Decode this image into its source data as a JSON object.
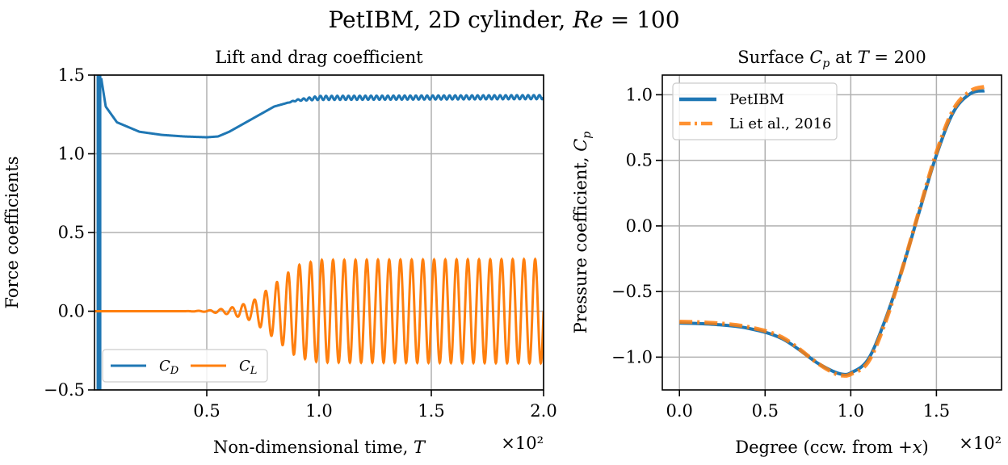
{
  "figure": {
    "suptitle": "PetIBM, 2D cylinder, Re = 100",
    "background": "#ffffff"
  },
  "chart_data": [
    {
      "type": "line",
      "title": "Lift and drag coefficient",
      "xlabel": "Non-dimensional time, T",
      "ylabel": "Force coefficients",
      "x_multiplier": "×10²",
      "xlim": [
        0,
        2.0
      ],
      "ylim": [
        -0.5,
        1.5
      ],
      "xticks": [
        "0.5",
        "1.0",
        "1.5",
        "2.0"
      ],
      "yticks": [
        "−0.5",
        "0.0",
        "0.5",
        "1.0",
        "1.5"
      ],
      "grid": true,
      "legend": {
        "position": "bottom-left",
        "columns": 2
      },
      "colors": {
        "cd": "#1f77b4",
        "cl": "#ff7f0e"
      },
      "series": [
        {
          "name": "C_D",
          "points": [
            [
              0.03,
              1.48
            ],
            [
              0.05,
              1.3
            ],
            [
              0.1,
              1.2
            ],
            [
              0.2,
              1.14
            ],
            [
              0.3,
              1.12
            ],
            [
              0.4,
              1.11
            ],
            [
              0.5,
              1.105
            ],
            [
              0.55,
              1.11
            ],
            [
              0.6,
              1.14
            ],
            [
              0.7,
              1.22
            ],
            [
              0.8,
              1.3
            ],
            [
              0.9,
              1.34
            ],
            [
              1.0,
              1.355
            ],
            [
              2.0,
              1.36
            ]
          ],
          "startup_spike": {
            "x": 0.02,
            "range": [
              -0.5,
              1.5
            ]
          },
          "steady_oscillation": {
            "from_x": 0.85,
            "amplitude": 0.013,
            "periods_per_unit": 40
          }
        },
        {
          "name": "C_L",
          "baseline": 0.0,
          "envelope": [
            [
              0.0,
              0.0
            ],
            [
              0.4,
              0.0
            ],
            [
              0.5,
              0.004
            ],
            [
              0.6,
              0.02
            ],
            [
              0.7,
              0.06
            ],
            [
              0.8,
              0.17
            ],
            [
              0.9,
              0.29
            ],
            [
              1.0,
              0.325
            ],
            [
              2.0,
              0.33
            ]
          ],
          "periods_per_unit": 20
        }
      ]
    },
    {
      "type": "line",
      "title": "Surface C_p at T = 200",
      "xlabel": "Degree (ccw. from +x)",
      "ylabel": "Pressure coefficient, C_p",
      "x_multiplier": "×10²",
      "xlim": [
        -0.1,
        1.88
      ],
      "ylim": [
        -1.25,
        1.15
      ],
      "xticks": [
        "0.0",
        "0.5",
        "1.0",
        "1.5"
      ],
      "yticks": [
        "−1.0",
        "−0.5",
        "0.0",
        "0.5",
        "1.0"
      ],
      "grid": true,
      "legend": {
        "position": "top-left"
      },
      "series": [
        {
          "name": "PetIBM",
          "color": "#1f77b4",
          "style": "solid",
          "points": [
            [
              0.0,
              -0.74
            ],
            [
              0.2,
              -0.75
            ],
            [
              0.4,
              -0.78
            ],
            [
              0.6,
              -0.86
            ],
            [
              0.8,
              -1.04
            ],
            [
              0.9,
              -1.11
            ],
            [
              0.95,
              -1.13
            ],
            [
              1.0,
              -1.12
            ],
            [
              1.1,
              -1.02
            ],
            [
              1.2,
              -0.72
            ],
            [
              1.3,
              -0.33
            ],
            [
              1.4,
              0.11
            ],
            [
              1.5,
              0.54
            ],
            [
              1.6,
              0.87
            ],
            [
              1.7,
              1.01
            ],
            [
              1.78,
              1.03
            ]
          ]
        },
        {
          "name": "Li et al., 2016",
          "color": "#ff7f0e",
          "style": "dashdot",
          "points": [
            [
              0.0,
              -0.73
            ],
            [
              0.2,
              -0.74
            ],
            [
              0.4,
              -0.77
            ],
            [
              0.6,
              -0.85
            ],
            [
              0.8,
              -1.04
            ],
            [
              0.9,
              -1.12
            ],
            [
              0.95,
              -1.14
            ],
            [
              1.0,
              -1.13
            ],
            [
              1.1,
              -1.04
            ],
            [
              1.2,
              -0.74
            ],
            [
              1.3,
              -0.33
            ],
            [
              1.4,
              0.12
            ],
            [
              1.5,
              0.56
            ],
            [
              1.6,
              0.89
            ],
            [
              1.7,
              1.03
            ],
            [
              1.78,
              1.06
            ]
          ]
        }
      ]
    }
  ]
}
